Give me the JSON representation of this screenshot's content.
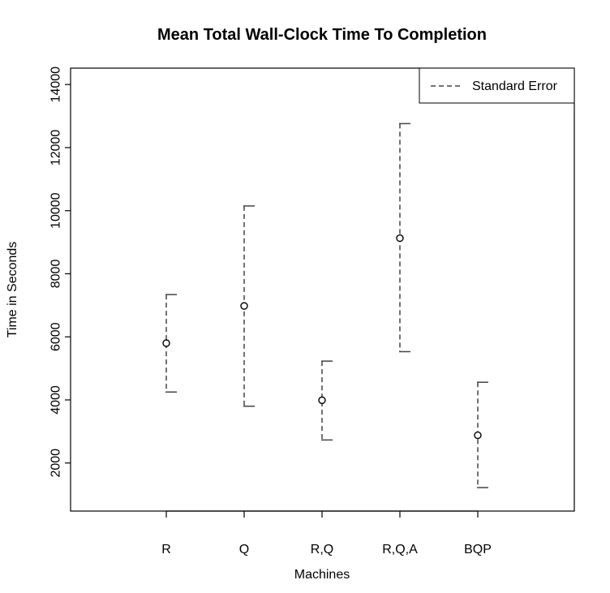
{
  "chart_data": {
    "type": "scatter",
    "title": "Mean Total Wall-Clock Time To Completion",
    "xlabel": "Machines",
    "ylabel": "Time in Seconds",
    "categories": [
      "R",
      "Q",
      "R,Q",
      "R,Q,A",
      "BQP"
    ],
    "means": [
      5800,
      6980,
      3990,
      9130,
      2880
    ],
    "lower": [
      4250,
      3800,
      2730,
      5530,
      1220
    ],
    "upper": [
      7340,
      10150,
      5230,
      12760,
      4560
    ],
    "yticks": [
      2000,
      4000,
      6000,
      8000,
      10000,
      12000,
      14000
    ],
    "ylim": [
      0,
      14500
    ],
    "grid": false,
    "legend": {
      "placement": "top-right",
      "entries": [
        "Standard Error"
      ]
    }
  }
}
